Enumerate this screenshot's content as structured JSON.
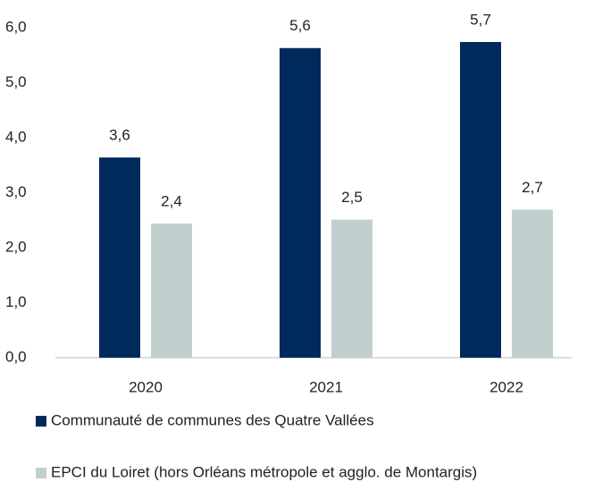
{
  "chart_data": {
    "type": "bar",
    "categories": [
      "2020",
      "2021",
      "2022"
    ],
    "series": [
      {
        "name": "Communauté de communes des Quatre Vallées",
        "color": "#002a5c",
        "values": [
          3.64,
          5.63,
          5.74
        ],
        "value_labels": [
          "3,6",
          "5,6",
          "5,7"
        ]
      },
      {
        "name": "EPCI du Loiret (hors Orléans métropole et agglo. de Montargis)",
        "color": "#c1cfcf",
        "values": [
          2.44,
          2.51,
          2.69
        ],
        "value_labels": [
          "2,4",
          "2,5",
          "2,7"
        ]
      }
    ],
    "ylim": [
      0,
      6
    ],
    "yticks": [
      {
        "value": 0,
        "label": "0,0"
      },
      {
        "value": 1,
        "label": "1,0"
      },
      {
        "value": 2,
        "label": "2,0"
      },
      {
        "value": 3,
        "label": "3,0"
      },
      {
        "value": 4,
        "label": "4,0"
      },
      {
        "value": 5,
        "label": "5,0"
      },
      {
        "value": 6,
        "label": "6,0"
      }
    ],
    "grid": false,
    "legend": "bottom"
  }
}
